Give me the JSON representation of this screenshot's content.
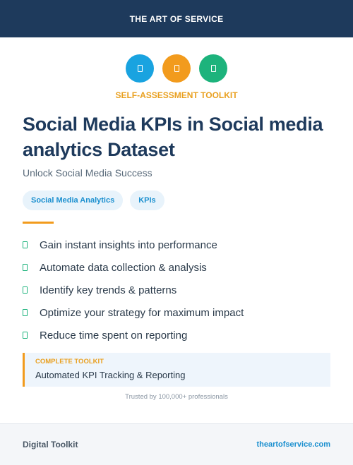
{
  "header": {
    "brand": "THE ART OF SERVICE"
  },
  "icons": [
    {
      "name": "document-icon",
      "color": "#19a3e0"
    },
    {
      "name": "document-icon",
      "color": "#f29b1d"
    },
    {
      "name": "document-icon",
      "color": "#1db37c"
    }
  ],
  "hero": {
    "eyebrow": "SELF-ASSESSMENT TOOLKIT",
    "title": "Social Media KPIs in Social media analytics Dataset",
    "subtitle": "Unlock Social Media Success"
  },
  "tags": [
    "Social Media Analytics",
    "KPIs"
  ],
  "features": [
    "Gain instant insights into performance",
    "Automate data collection & analysis",
    "Identify key trends & patterns",
    "Optimize your strategy for maximum impact",
    "Reduce time spent on reporting"
  ],
  "callout": {
    "label": "COMPLETE TOOLKIT",
    "text": "Automated KPI Tracking & Reporting"
  },
  "trusted": "Trusted by 100,000+ professionals",
  "footer": {
    "left": "Digital Toolkit",
    "right": "theartofservice.com"
  },
  "colors": {
    "navy": "#1e3a5c",
    "orange": "#f29b1d",
    "blue": "#19a3e0",
    "green": "#1db37c"
  }
}
